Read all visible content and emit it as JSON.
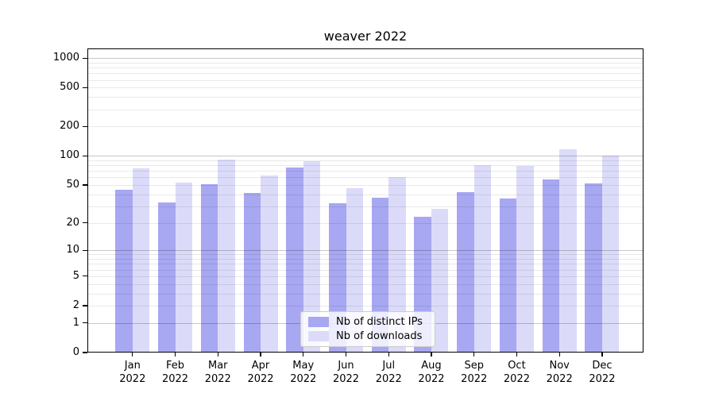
{
  "title": "weaver 2022",
  "chart_data": {
    "type": "bar",
    "title": "weaver 2022",
    "x_months": [
      "Jan",
      "Feb",
      "Mar",
      "Apr",
      "May",
      "Jun",
      "Jul",
      "Aug",
      "Sep",
      "Oct",
      "Nov",
      "Dec"
    ],
    "x_year": "2022",
    "categories": [
      "Jan 2022",
      "Feb 2022",
      "Mar 2022",
      "Apr 2022",
      "May 2022",
      "Jun 2022",
      "Jul 2022",
      "Aug 2022",
      "Sep 2022",
      "Oct 2022",
      "Nov 2022",
      "Dec 2022"
    ],
    "series": [
      {
        "name": "Nb of distinct IPs",
        "color": "#a7a7f2",
        "values": [
          45,
          33,
          51,
          41,
          76,
          32,
          37,
          23,
          42,
          36,
          57,
          52
        ]
      },
      {
        "name": "Nb of downloads",
        "color": "#dbdbf9",
        "values": [
          74,
          53,
          92,
          63,
          89,
          46,
          60,
          28,
          81,
          79,
          116,
          100
        ]
      }
    ],
    "y_scale": "log1p",
    "y_ticks": [
      0,
      1,
      2,
      5,
      10,
      20,
      50,
      100,
      200,
      500,
      1000
    ],
    "y_major_gridlines": [
      1,
      10,
      100,
      1000
    ],
    "y_minor_gridline_pattern": "2-9 per decade",
    "ylim": [
      0,
      1258
    ],
    "grid": true,
    "legend_position": "lower center"
  },
  "colors": {
    "major_grid": "rgba(0,0,0,0.22)",
    "minor_grid": "rgba(0,0,0,0.085)",
    "axis": "#000000",
    "legend_border": "#cccccc",
    "background": "#ffffff"
  }
}
